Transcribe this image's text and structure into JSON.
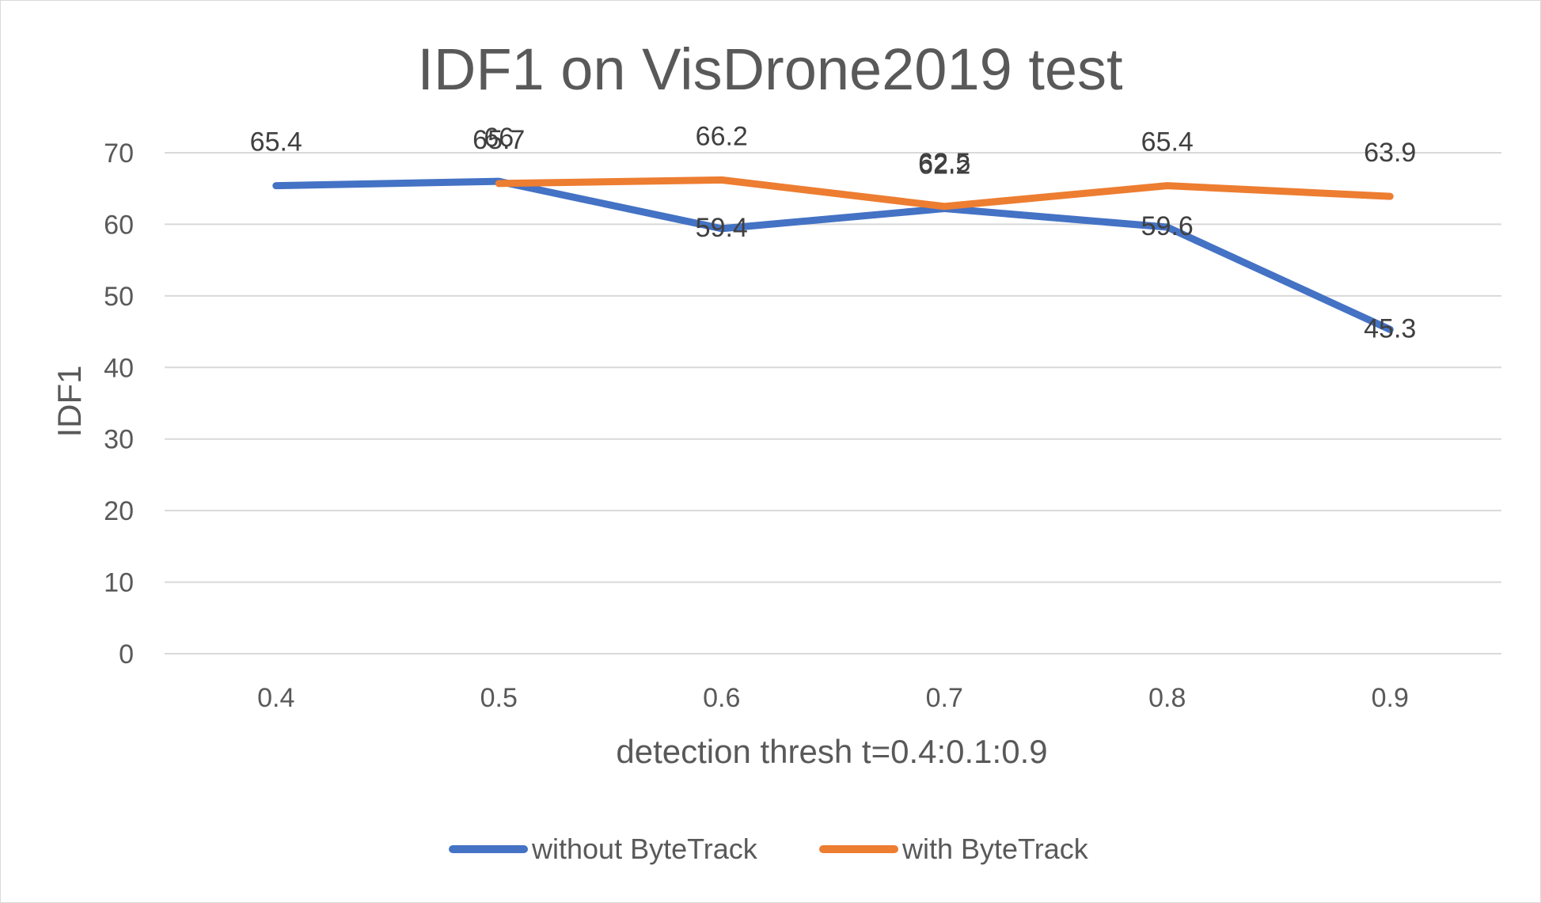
{
  "chart_data": {
    "type": "line",
    "title": "IDF1 on VisDrone2019 test",
    "xlabel": "detection thresh t=0.4:0.1:0.9",
    "ylabel": "IDF1",
    "categories": [
      "0.4",
      "0.5",
      "0.6",
      "0.7",
      "0.8",
      "0.9"
    ],
    "ylim": [
      0,
      70
    ],
    "yticks": [
      "0",
      "10",
      "20",
      "30",
      "40",
      "50",
      "60",
      "70"
    ],
    "grid": true,
    "legend_position": "bottom",
    "series": [
      {
        "name": "without ByteTrack",
        "color": "#4472C4",
        "values": [
          65.4,
          66,
          59.4,
          62.2,
          59.6,
          45.3
        ],
        "labels": [
          "65.4",
          "66",
          "59.4",
          "62.2",
          "59.6",
          "45.3"
        ]
      },
      {
        "name": "with ByteTrack",
        "color": "#ED7D31",
        "values": [
          null,
          65.7,
          66.2,
          62.5,
          65.4,
          63.9
        ],
        "labels": [
          "",
          "65.7",
          "66.2",
          "62.5",
          "65.4",
          "63.9"
        ]
      }
    ]
  }
}
